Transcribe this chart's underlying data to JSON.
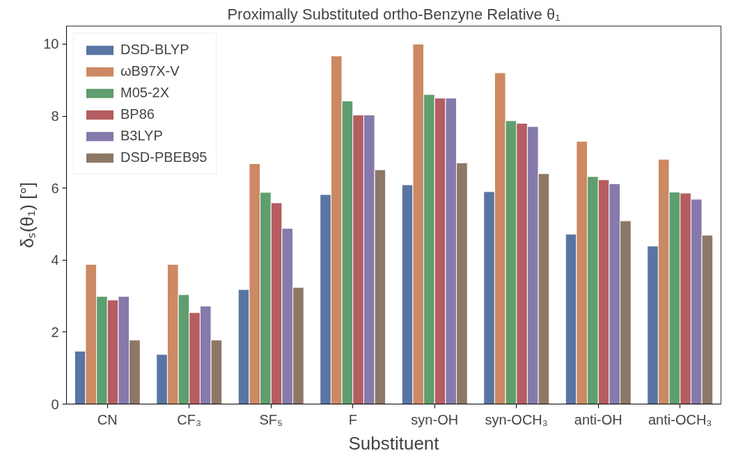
{
  "chart_data": {
    "type": "bar",
    "title": "Proximally Substituted ortho-Benzyne Relative θ₁",
    "xlabel": "Substituent",
    "ylabel": "δₛ(θ₁) [°]",
    "categories": [
      "CN",
      "CF₃",
      "SF₅",
      "F",
      "syn-OH",
      "syn-OCH₃",
      "anti-OH",
      "anti-OCH₃"
    ],
    "series": [
      {
        "name": "DSD-BLYP",
        "color": "#5875a4",
        "values": [
          1.47,
          1.38,
          3.18,
          5.82,
          6.09,
          5.9,
          4.72,
          4.39
        ]
      },
      {
        "name": "ωB97X-V",
        "color": "#cc8963",
        "values": [
          3.88,
          3.88,
          6.68,
          9.67,
          10.0,
          9.2,
          7.3,
          6.8
        ]
      },
      {
        "name": "M05-2X",
        "color": "#5f9e6e",
        "values": [
          2.99,
          3.04,
          5.88,
          8.42,
          8.6,
          7.87,
          6.32,
          5.89
        ]
      },
      {
        "name": "BP86",
        "color": "#b55d60",
        "values": [
          2.89,
          2.54,
          5.59,
          8.03,
          8.5,
          7.8,
          6.23,
          5.86
        ]
      },
      {
        "name": "B3LYP",
        "color": "#857aab",
        "values": [
          2.99,
          2.72,
          4.88,
          8.03,
          8.5,
          7.71,
          6.12,
          5.69
        ]
      },
      {
        "name": "DSD-PBEB95",
        "color": "#8d7866",
        "values": [
          1.78,
          1.78,
          3.24,
          6.51,
          6.7,
          6.4,
          5.09,
          4.69
        ]
      }
    ],
    "ylim": [
      0,
      10.5
    ],
    "yticks": [
      0,
      2,
      4,
      6,
      8,
      10
    ],
    "grid": false,
    "legend": "top left"
  }
}
